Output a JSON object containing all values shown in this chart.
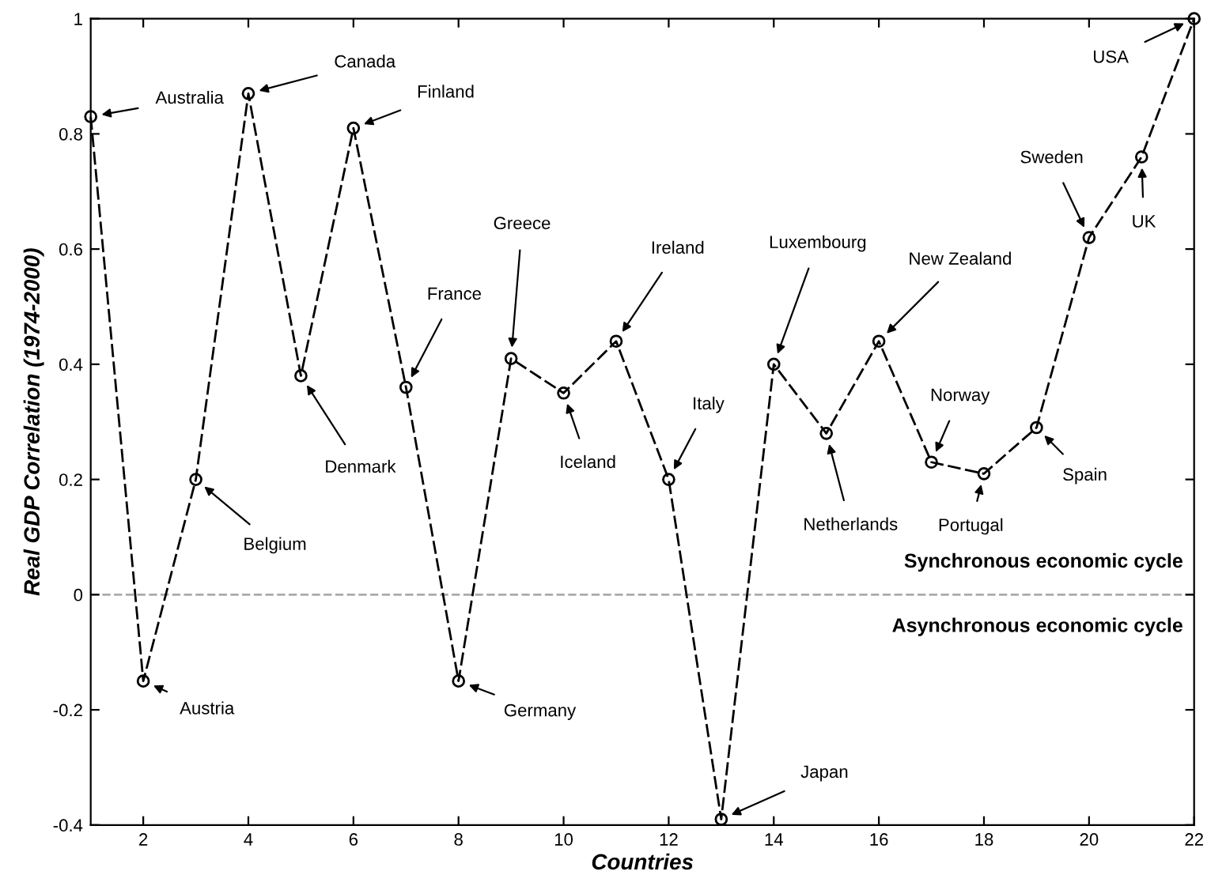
{
  "chart_data": {
    "type": "line",
    "xlabel": "Countries",
    "ylabel": "Real GDP Correlation (1974-2000)",
    "x": [
      1,
      2,
      3,
      4,
      5,
      6,
      7,
      8,
      9,
      10,
      11,
      12,
      13,
      14,
      15,
      16,
      17,
      18,
      19,
      20,
      21,
      22
    ],
    "series": [
      {
        "color": "#000000",
        "values": [
          0.83,
          -0.15,
          0.2,
          0.87,
          0.38,
          0.81,
          0.36,
          -0.15,
          0.41,
          0.35,
          0.44,
          0.2,
          -0.39,
          0.4,
          0.28,
          0.44,
          0.23,
          0.21,
          0.29,
          0.62,
          0.76,
          1.0
        ]
      }
    ],
    "marker": "circle",
    "line_style": "dashed",
    "xlim": [
      1,
      22
    ],
    "xticks": [
      2,
      4,
      6,
      8,
      10,
      12,
      14,
      16,
      18,
      20,
      22
    ],
    "ylim": [
      -0.4,
      1
    ],
    "yticks": [
      {
        "value": -0.4,
        "label": "-0.4"
      },
      {
        "value": -0.2,
        "label": "-0.2"
      },
      0,
      0.2,
      0.4,
      0.6,
      0.8,
      1
    ],
    "grid": false,
    "legend": false,
    "ref_lines": [
      {
        "axis": "y",
        "value": 0,
        "color": "#aaaaaa",
        "line_style": "dashed"
      }
    ],
    "annotations": [
      {
        "text": "Australia",
        "x": 1,
        "y": 0.83
      },
      {
        "text": "Austria",
        "x": 2,
        "y": -0.15
      },
      {
        "text": "Belgium",
        "x": 3,
        "y": 0.2
      },
      {
        "text": "Canada",
        "x": 4,
        "y": 0.87
      },
      {
        "text": "Denmark",
        "x": 5,
        "y": 0.38
      },
      {
        "text": "Finland",
        "x": 6,
        "y": 0.81
      },
      {
        "text": "France",
        "x": 7,
        "y": 0.36
      },
      {
        "text": "Germany",
        "x": 8,
        "y": -0.15
      },
      {
        "text": "Greece",
        "x": 9,
        "y": 0.41
      },
      {
        "text": "Iceland",
        "x": 10,
        "y": 0.35
      },
      {
        "text": "Ireland",
        "x": 11,
        "y": 0.44
      },
      {
        "text": "Italy",
        "x": 12,
        "y": 0.2
      },
      {
        "text": "Japan",
        "x": 13,
        "y": -0.39
      },
      {
        "text": "Luxembourg",
        "x": 14,
        "y": 0.4
      },
      {
        "text": "Netherlands",
        "x": 15,
        "y": 0.28
      },
      {
        "text": "New Zealand",
        "x": 16,
        "y": 0.44
      },
      {
        "text": "Norway",
        "x": 17,
        "y": 0.23
      },
      {
        "text": "Portugal",
        "x": 18,
        "y": 0.21
      },
      {
        "text": "Spain",
        "x": 19,
        "y": 0.29
      },
      {
        "text": "Sweden",
        "x": 20,
        "y": 0.62
      },
      {
        "text": "UK",
        "x": 21,
        "y": 0.76
      },
      {
        "text": "USA",
        "x": 22,
        "y": 1.0
      },
      "Synchronous economic cycle",
      "Asynchronous economic cycle"
    ]
  }
}
